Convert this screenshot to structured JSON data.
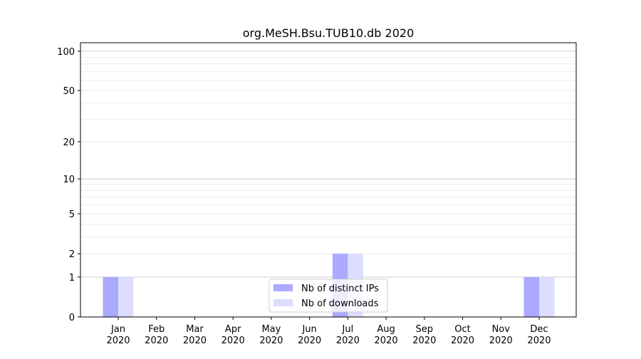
{
  "chart_data": {
    "type": "bar",
    "title": "org.MeSH.Bsu.TUB10.db 2020",
    "xlabel": "",
    "ylabel": "",
    "yscale": "symlog",
    "ylim": [
      0,
      116
    ],
    "yticks": [
      0,
      1,
      2,
      5,
      10,
      20,
      50,
      100
    ],
    "ytick_labels": [
      "0",
      "1",
      "2",
      "5",
      "10",
      "20",
      "50",
      "100"
    ],
    "grid": true,
    "legend_position": "bottom-center",
    "categories": [
      "Jan\n2020",
      "Feb\n2020",
      "Mar\n2020",
      "Apr\n2020",
      "May\n2020",
      "Jun\n2020",
      "Jul\n2020",
      "Aug\n2020",
      "Sep\n2020",
      "Oct\n2020",
      "Nov\n2020",
      "Dec\n2020"
    ],
    "series": [
      {
        "name": "Nb of distinct IPs",
        "color": "#aaaaff",
        "values": [
          1,
          0,
          0,
          0,
          0,
          0,
          2,
          0,
          0,
          0,
          0,
          1
        ]
      },
      {
        "name": "Nb of downloads",
        "color": "#ddddff",
        "values": [
          1,
          0,
          0,
          0,
          0,
          0,
          2,
          0,
          0,
          0,
          0,
          1
        ]
      }
    ]
  }
}
